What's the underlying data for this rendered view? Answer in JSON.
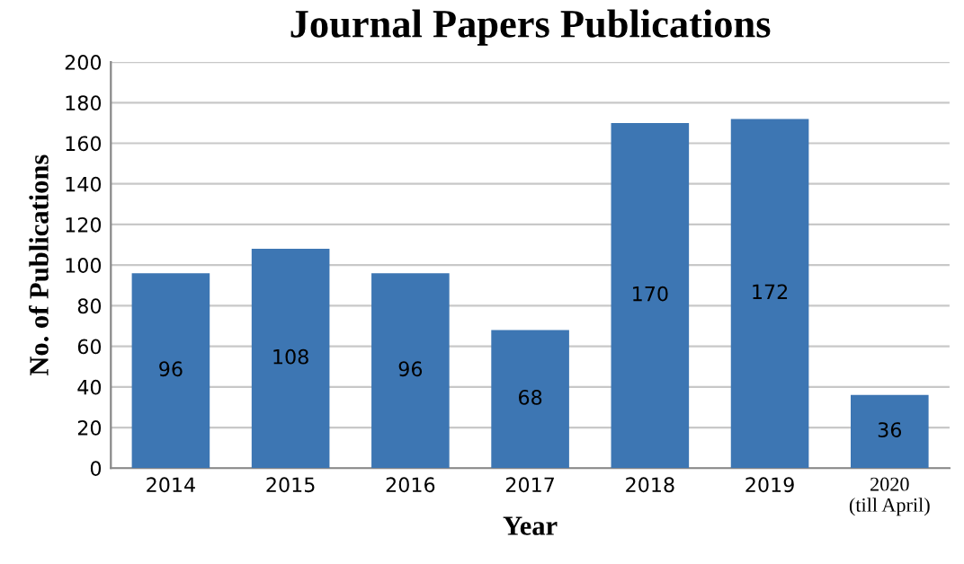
{
  "chart_data": {
    "type": "bar",
    "title": "Journal Papers Publications",
    "xlabel": "Year",
    "ylabel": "No. of Publications",
    "categories": [
      "2014",
      "2015",
      "2016",
      "2017",
      "2018",
      "2019",
      "2020\n(till April)"
    ],
    "values": [
      96,
      108,
      96,
      68,
      170,
      172,
      36
    ],
    "color": "#3d76b3",
    "ylim": [
      0,
      200
    ],
    "yticks": [
      0,
      20,
      40,
      60,
      80,
      100,
      120,
      140,
      160,
      180,
      200
    ],
    "grid": "y",
    "data_labels": true
  }
}
